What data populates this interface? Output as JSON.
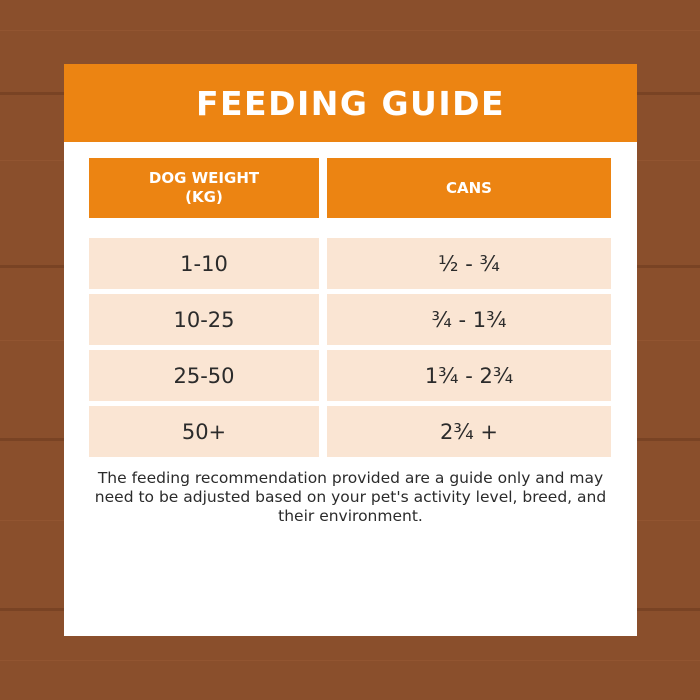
{
  "title": "FEEDING GUIDE",
  "table": {
    "headers": [
      "DOG WEIGHT\n(KG)",
      "CANS"
    ],
    "rows": [
      {
        "weight": "1-10",
        "cans": "½ - ¾"
      },
      {
        "weight": "10-25",
        "cans": "¾ - 1¾"
      },
      {
        "weight": "25-50",
        "cans": "1¾ - 2¾"
      },
      {
        "weight": "50+",
        "cans": "2¾ +"
      }
    ]
  },
  "note": "The feeding recommendation provided are a guide only and may need to be adjusted based on your pet's activity level, breed, and their environment.",
  "colors": {
    "background_wood": "#8a4f2c",
    "accent_orange": "#ec8412",
    "row_fill": "#fae5d3",
    "text_dark": "#2b2b2b"
  }
}
